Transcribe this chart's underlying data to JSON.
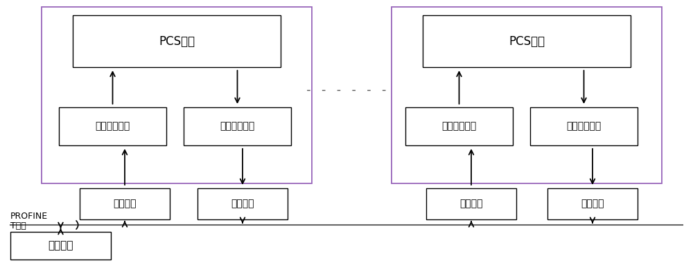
{
  "bg_color": "#ffffff",
  "box_edge": "#000000",
  "purple_edge": "#9966bb",
  "font_size": 11,
  "small_font_size": 9,
  "left_pcs_label": "PCS单元",
  "left_out_label": "网络信息输出",
  "left_in_label": "网络信息输入",
  "left_delay1_label": "网络延时",
  "left_delay2_label": "网络延时",
  "right_pcs_label": "PCS单元",
  "right_out_label": "网络信息输出",
  "right_in_label": "网络信息输入",
  "right_delay1_label": "网络延时",
  "right_delay2_label": "网络延时",
  "monitor_label": "监控平台",
  "profinet_label1": "PROFINE",
  "profinet_label2": "T网络",
  "dashes": "- - - - - -"
}
